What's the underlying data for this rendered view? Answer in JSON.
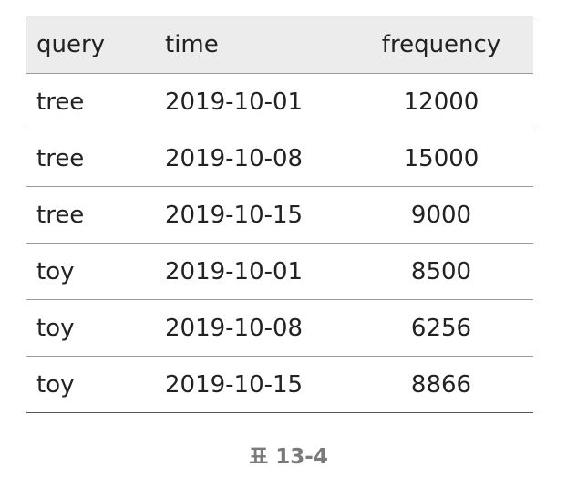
{
  "table": {
    "headers": [
      "query",
      "time",
      "frequency"
    ],
    "rows": [
      [
        "tree",
        "2019-10-01",
        "12000"
      ],
      [
        "tree",
        "2019-10-08",
        "15000"
      ],
      [
        "tree",
        "2019-10-15",
        "9000"
      ],
      [
        "toy",
        "2019-10-01",
        "8500"
      ],
      [
        "toy",
        "2019-10-08",
        "6256"
      ],
      [
        "toy",
        "2019-10-15",
        "8866"
      ]
    ]
  },
  "caption": "표 13-4"
}
